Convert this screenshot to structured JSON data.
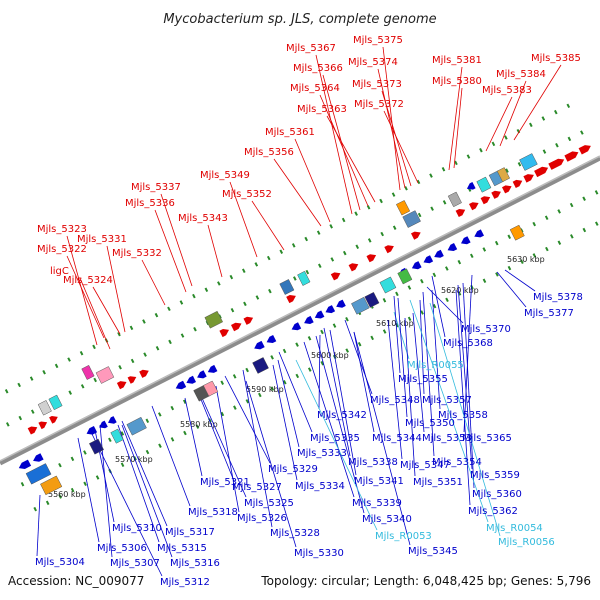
{
  "title": "Mycobacterium sp. JLS, complete genome",
  "footer": {
    "accession": "Accession: NC_009077",
    "summary": "Topology: circular; Length: 6,048,425 bp; Genes: 5,796"
  },
  "colors": {
    "forward": "#e00000",
    "reverse": "#0000cc",
    "rna": "#33bbdd",
    "backbone": "#8c8c8c",
    "minor_tick": "#2a8a2a"
  },
  "ticks": [
    "5560 kbp",
    "5570 kbp",
    "5580 kbp",
    "5590 kbp",
    "5600 kbp",
    "5610 kbp",
    "5620 kbp",
    "5630 kbp"
  ],
  "top_labels": [
    "Mjls_5323",
    "Mjls_5322",
    "ligC",
    "Mjls_5331",
    "Mjls_5324",
    "Mjls_5332",
    "Mjls_5337",
    "Mjls_5336",
    "Mjls_5343",
    "Mjls_5349",
    "Mjls_5352",
    "Mjls_5356",
    "Mjls_5361",
    "Mjls_5363",
    "Mjls_5364",
    "Mjls_5366",
    "Mjls_5367",
    "Mjls_5372",
    "Mjls_5373",
    "Mjls_5374",
    "Mjls_5375",
    "Mjls_5380",
    "Mjls_5381",
    "Mjls_5383",
    "Mjls_5384",
    "Mjls_5385"
  ],
  "bottom_labels": [
    "Mjls_5378",
    "Mjls_5377",
    "Mjls_5370",
    "Mjls_5368",
    "Mjls_R0055",
    "Mjls_5355",
    "Mjls_5348",
    "Mjls_5357",
    "Mjls_5342",
    "Mjls_5350",
    "Mjls_5358",
    "Mjls_5335",
    "Mjls_5344",
    "Mjls_5353",
    "Mjls_5365",
    "Mjls_5329",
    "Mjls_5333",
    "Mjls_5338",
    "Mjls_5347",
    "Mjls_5354",
    "Mjls_5321",
    "Mjls_5327",
    "Mjls_5334",
    "Mjls_5341",
    "Mjls_5351",
    "Mjls_5359",
    "Mjls_5318",
    "Mjls_5325",
    "Mjls_5339",
    "Mjls_5360",
    "Mjls_5326",
    "Mjls_5340",
    "Mjls_5362",
    "Mjls_5310",
    "Mjls_5317",
    "Mjls_5328",
    "Mjls_R0053",
    "Mjls_R0054",
    "Mjls_5306",
    "Mjls_5315",
    "Mjls_5330",
    "Mjls_5345",
    "Mjls_R0056",
    "Mjls_5304",
    "Mjls_5307",
    "Mjls_5316",
    "Mjls_5312"
  ]
}
